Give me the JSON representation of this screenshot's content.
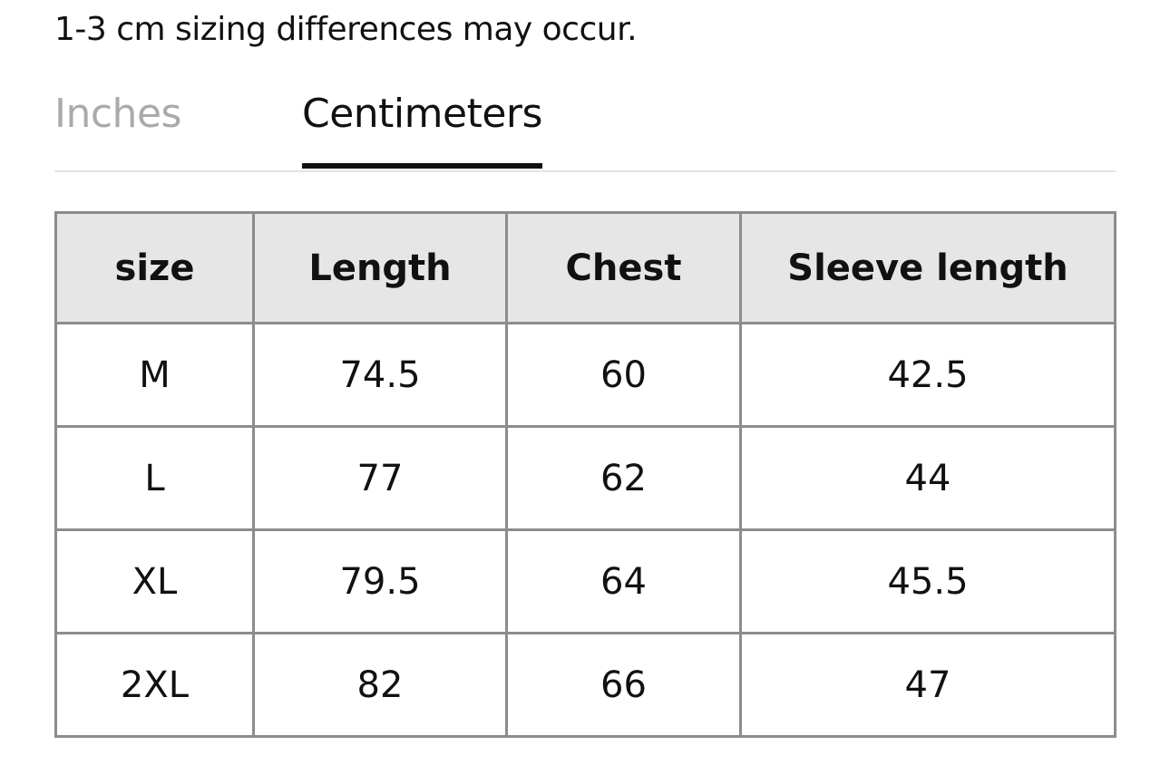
{
  "note": "1-3 cm sizing differences may occur.",
  "tabs": [
    {
      "label": "Inches",
      "active": false
    },
    {
      "label": "Centimeters",
      "active": true
    }
  ],
  "table": {
    "header": [
      "size",
      "Length",
      "Chest",
      "Sleeve length"
    ],
    "rows": [
      [
        "M",
        74.5,
        60,
        42.5
      ],
      [
        "L",
        77,
        62,
        44
      ],
      [
        "XL",
        79.5,
        64,
        45.5
      ],
      [
        "2XL",
        82,
        66,
        47
      ]
    ]
  }
}
